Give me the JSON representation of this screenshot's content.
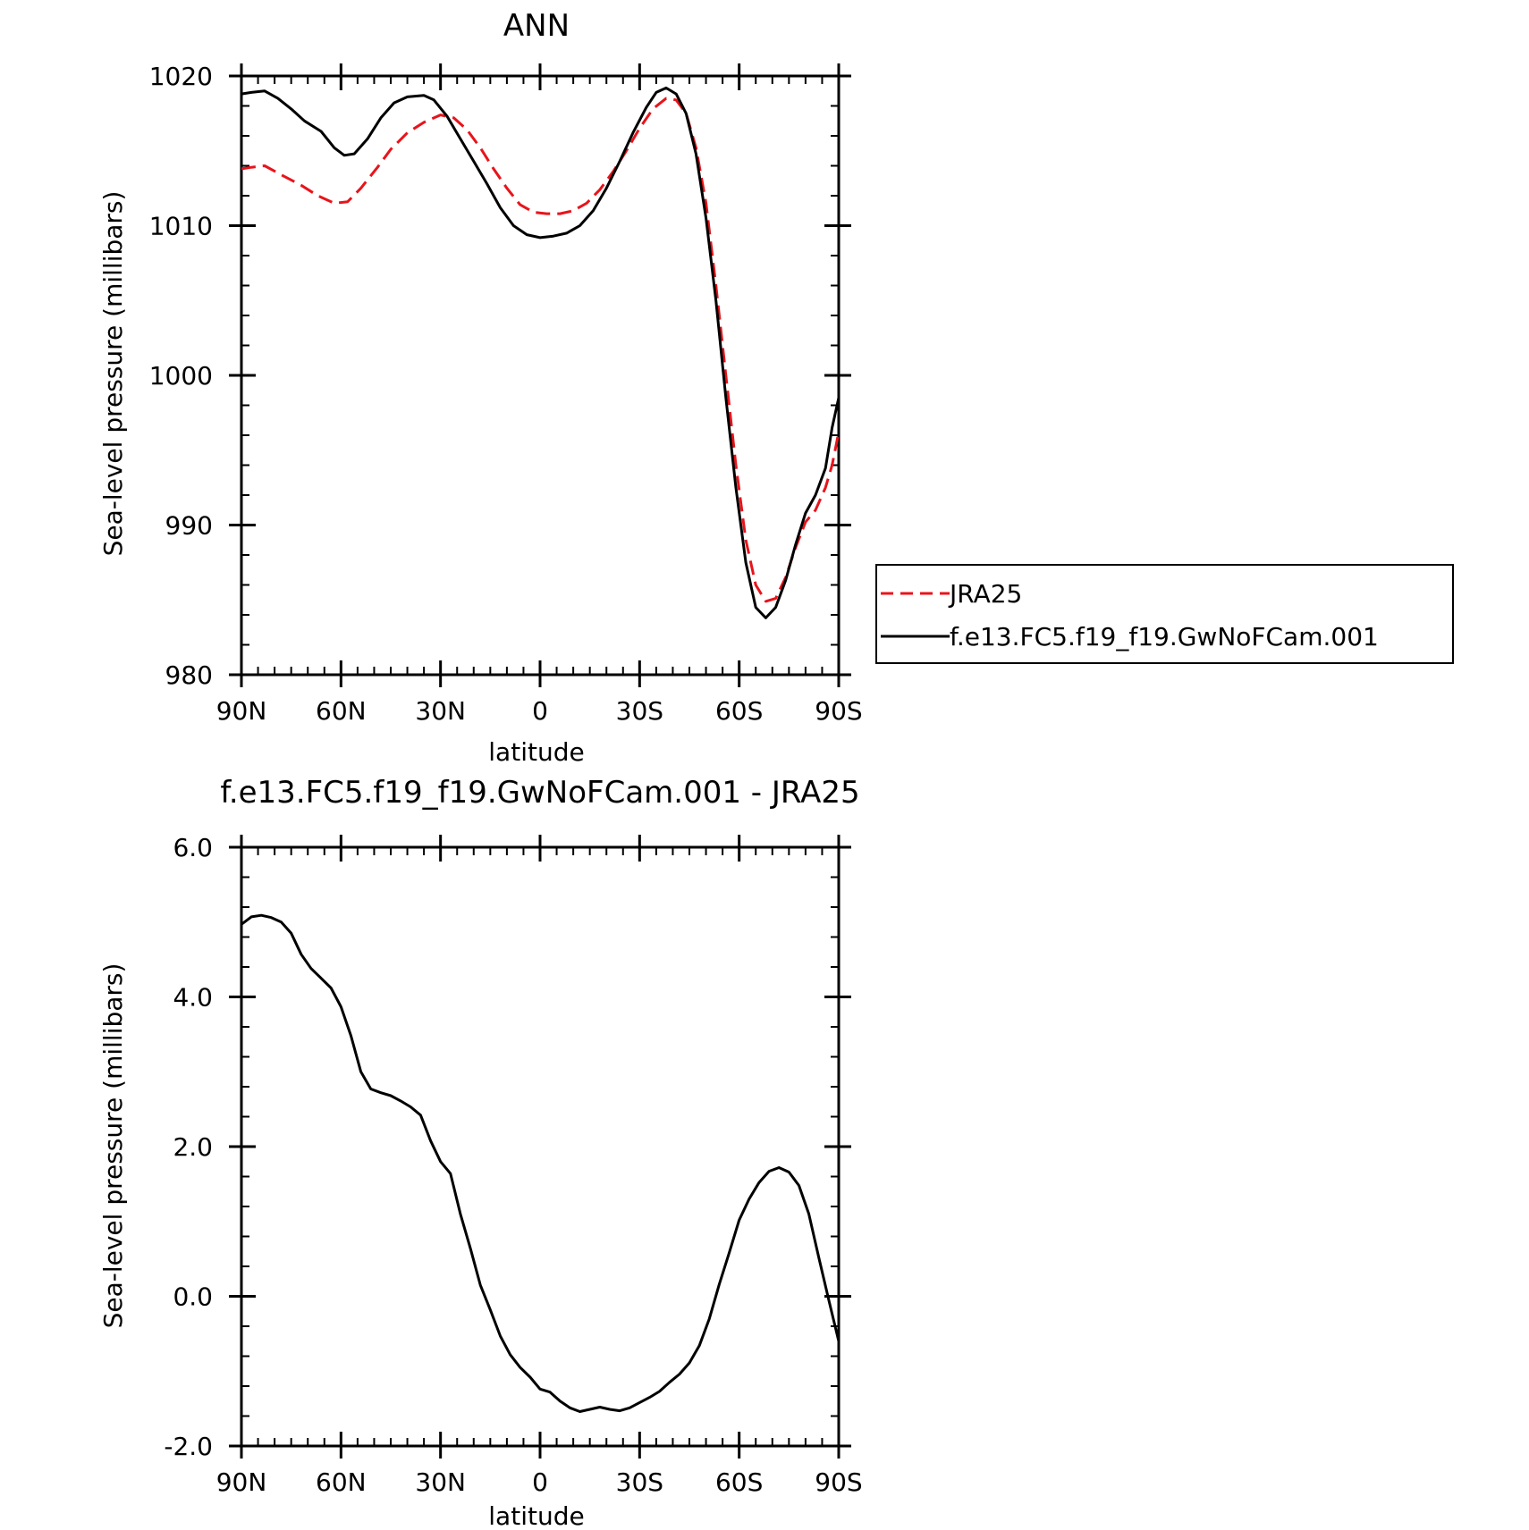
{
  "chart_data": [
    {
      "type": "line",
      "title": "ANN",
      "xlabel": "latitude",
      "ylabel": "Sea-level pressure (millibars)",
      "xlim": [
        90,
        -90
      ],
      "ylim": [
        980,
        1020
      ],
      "x_tick_values": [
        90,
        60,
        30,
        0,
        -30,
        -60,
        -90
      ],
      "x_tick_labels": [
        "90N",
        "60N",
        "30N",
        "0",
        "30S",
        "60S",
        "90S"
      ],
      "y_tick_values": [
        980,
        990,
        1000,
        1010,
        1020
      ],
      "y_tick_labels": [
        "980",
        "990",
        "1000",
        "1010",
        "1020"
      ],
      "grid": false,
      "legend_position": "right",
      "series": [
        {
          "name": "JRA25",
          "color": "#e8141b",
          "dash": "dashed",
          "points": [
            [
              90,
              1013.8
            ],
            [
              87,
              1013.9
            ],
            [
              83,
              1014.0
            ],
            [
              78,
              1013.4
            ],
            [
              72,
              1012.7
            ],
            [
              67,
              1012.0
            ],
            [
              62,
              1011.5
            ],
            [
              58,
              1011.6
            ],
            [
              54,
              1012.5
            ],
            [
              49,
              1013.9
            ],
            [
              45,
              1015.1
            ],
            [
              40,
              1016.2
            ],
            [
              35,
              1016.9
            ],
            [
              30,
              1017.4
            ],
            [
              26,
              1017.2
            ],
            [
              22,
              1016.4
            ],
            [
              18,
              1015.2
            ],
            [
              14,
              1013.8
            ],
            [
              10,
              1012.5
            ],
            [
              6,
              1011.4
            ],
            [
              2,
              1010.9
            ],
            [
              -2,
              1010.8
            ],
            [
              -6,
              1010.8
            ],
            [
              -10,
              1011.0
            ],
            [
              -14,
              1011.5
            ],
            [
              -18,
              1012.4
            ],
            [
              -22,
              1013.6
            ],
            [
              -26,
              1015.0
            ],
            [
              -30,
              1016.5
            ],
            [
              -34,
              1017.8
            ],
            [
              -38,
              1018.5
            ],
            [
              -41,
              1018.4
            ],
            [
              -44,
              1017.5
            ],
            [
              -47,
              1015.2
            ],
            [
              -50,
              1011.5
            ],
            [
              -53,
              1006.0
            ],
            [
              -56,
              1000.0
            ],
            [
              -59,
              994.0
            ],
            [
              -62,
              989.0
            ],
            [
              -65,
              986.0
            ],
            [
              -68,
              984.9
            ],
            [
              -71,
              985.1
            ],
            [
              -74,
              986.5
            ],
            [
              -77,
              988.5
            ],
            [
              -80,
              990.2
            ],
            [
              -83,
              991.0
            ],
            [
              -86,
              992.5
            ],
            [
              -88,
              994.0
            ],
            [
              -90,
              996.2
            ]
          ]
        },
        {
          "name": "f.e13.FC5.f19_f19.GwNoFCam.001",
          "color": "#000000",
          "dash": "solid",
          "points": [
            [
              90,
              1018.8
            ],
            [
              87,
              1018.9
            ],
            [
              83,
              1019.0
            ],
            [
              79,
              1018.5
            ],
            [
              75,
              1017.8
            ],
            [
              71,
              1017.0
            ],
            [
              66,
              1016.3
            ],
            [
              62,
              1015.2
            ],
            [
              59,
              1014.7
            ],
            [
              56,
              1014.8
            ],
            [
              52,
              1015.8
            ],
            [
              48,
              1017.2
            ],
            [
              44,
              1018.2
            ],
            [
              40,
              1018.6
            ],
            [
              35,
              1018.7
            ],
            [
              32,
              1018.4
            ],
            [
              28,
              1017.3
            ],
            [
              24,
              1015.8
            ],
            [
              20,
              1014.3
            ],
            [
              16,
              1012.8
            ],
            [
              12,
              1011.2
            ],
            [
              8,
              1010.0
            ],
            [
              4,
              1009.4
            ],
            [
              0,
              1009.2
            ],
            [
              -4,
              1009.3
            ],
            [
              -8,
              1009.5
            ],
            [
              -12,
              1010.0
            ],
            [
              -16,
              1011.0
            ],
            [
              -20,
              1012.5
            ],
            [
              -24,
              1014.3
            ],
            [
              -28,
              1016.2
            ],
            [
              -32,
              1017.9
            ],
            [
              -35,
              1018.9
            ],
            [
              -38,
              1019.2
            ],
            [
              -41,
              1018.8
            ],
            [
              -44,
              1017.5
            ],
            [
              -47,
              1014.8
            ],
            [
              -50,
              1010.5
            ],
            [
              -53,
              1005.0
            ],
            [
              -56,
              998.5
            ],
            [
              -59,
              992.5
            ],
            [
              -62,
              987.5
            ],
            [
              -65,
              984.5
            ],
            [
              -68,
              983.8
            ],
            [
              -71,
              984.5
            ],
            [
              -74,
              986.3
            ],
            [
              -77,
              988.7
            ],
            [
              -80,
              990.8
            ],
            [
              -83,
              992.0
            ],
            [
              -86,
              993.8
            ],
            [
              -88,
              996.5
            ],
            [
              -90,
              998.5
            ]
          ]
        }
      ]
    },
    {
      "type": "line",
      "title": "f.e13.FC5.f19_f19.GwNoFCam.001 - JRA25",
      "xlabel": "latitude",
      "ylabel": "Sea-level pressure (millibars)",
      "xlim": [
        90,
        -90
      ],
      "ylim": [
        -2.0,
        6.0
      ],
      "x_tick_values": [
        90,
        60,
        30,
        0,
        -30,
        -60,
        -90
      ],
      "x_tick_labels": [
        "90N",
        "60N",
        "30N",
        "0",
        "30S",
        "60S",
        "90S"
      ],
      "y_tick_values": [
        -2.0,
        0.0,
        2.0,
        4.0,
        6.0
      ],
      "y_tick_labels": [
        "-2.0",
        "0.0",
        "2.0",
        "4.0",
        "6.0"
      ],
      "grid": false,
      "series": [
        {
          "color": "#000000",
          "dash": "solid",
          "points": [
            [
              90,
              4.97
            ],
            [
              87,
              5.07
            ],
            [
              84,
              5.09
            ],
            [
              81,
              5.06
            ],
            [
              78,
              5.0
            ],
            [
              75,
              4.85
            ],
            [
              72,
              4.57
            ],
            [
              69,
              4.38
            ],
            [
              66,
              4.25
            ],
            [
              63,
              4.12
            ],
            [
              60,
              3.87
            ],
            [
              57,
              3.48
            ],
            [
              54,
              3.0
            ],
            [
              51,
              2.77
            ],
            [
              48,
              2.72
            ],
            [
              45,
              2.68
            ],
            [
              42,
              2.61
            ],
            [
              39,
              2.53
            ],
            [
              36,
              2.42
            ],
            [
              33,
              2.08
            ],
            [
              30,
              1.8
            ],
            [
              27,
              1.64
            ],
            [
              24,
              1.1
            ],
            [
              21,
              0.64
            ],
            [
              18,
              0.15
            ],
            [
              15,
              -0.18
            ],
            [
              12,
              -0.53
            ],
            [
              9,
              -0.78
            ],
            [
              6,
              -0.95
            ],
            [
              3,
              -1.08
            ],
            [
              0,
              -1.24
            ],
            [
              -3,
              -1.28
            ],
            [
              -6,
              -1.4
            ],
            [
              -9,
              -1.49
            ],
            [
              -12,
              -1.54
            ],
            [
              -15,
              -1.51
            ],
            [
              -18,
              -1.48
            ],
            [
              -21,
              -1.51
            ],
            [
              -24,
              -1.53
            ],
            [
              -27,
              -1.49
            ],
            [
              -30,
              -1.42
            ],
            [
              -33,
              -1.35
            ],
            [
              -36,
              -1.27
            ],
            [
              -39,
              -1.15
            ],
            [
              -42,
              -1.04
            ],
            [
              -45,
              -0.89
            ],
            [
              -48,
              -0.66
            ],
            [
              -51,
              -0.3
            ],
            [
              -54,
              0.16
            ],
            [
              -57,
              0.58
            ],
            [
              -60,
              1.02
            ],
            [
              -63,
              1.3
            ],
            [
              -66,
              1.52
            ],
            [
              -69,
              1.67
            ],
            [
              -72,
              1.72
            ],
            [
              -75,
              1.66
            ],
            [
              -78,
              1.48
            ],
            [
              -81,
              1.1
            ],
            [
              -84,
              0.52
            ],
            [
              -87,
              -0.05
            ],
            [
              -90,
              -0.6
            ]
          ]
        }
      ]
    }
  ]
}
